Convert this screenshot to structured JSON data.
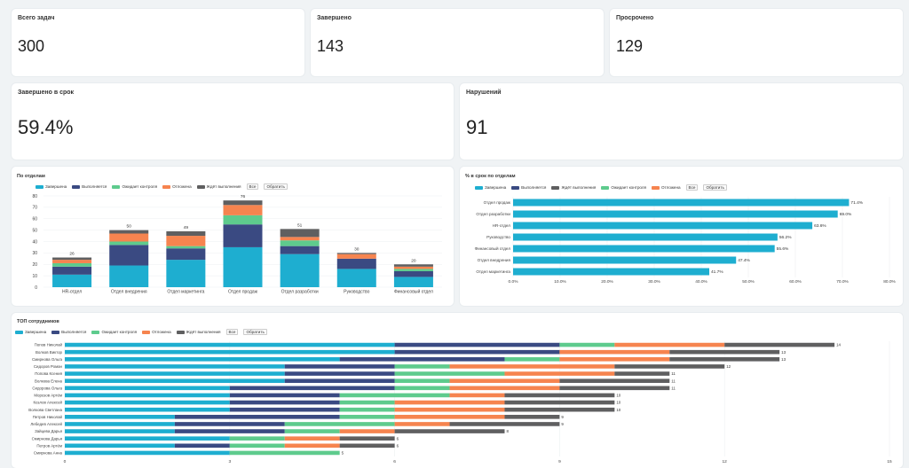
{
  "colors": {
    "done": "#1eaed0",
    "inprogress": "#3a4a82",
    "control": "#5ecb8d",
    "postponed": "#f6844f",
    "waiting": "#5f5f60"
  },
  "kpis": [
    {
      "label": "Всего задач",
      "value": "300"
    },
    {
      "label": "Завершено",
      "value": "143"
    },
    {
      "label": "Просрочено",
      "value": "129"
    }
  ],
  "kpis2": [
    {
      "label": "Завершено в срок",
      "value": "59.4%"
    },
    {
      "label": "Нарушений",
      "value": "91"
    }
  ],
  "legend_buttons": {
    "all": "Все",
    "invert": "Обратить"
  },
  "chart_data": [
    {
      "type": "bar",
      "stacked": true,
      "title": "По отделам",
      "legend": [
        "Завершена",
        "Выполняется",
        "Ожидает контроля",
        "Отложена",
        "Ждёт выполнения"
      ],
      "categories": [
        "HR-отдел",
        "Отдел внедрения",
        "Отдел маркетинга",
        "Отдел продаж",
        "Отдел разработки",
        "Руководство",
        "Финансовый отдел"
      ],
      "totals": [
        26,
        50,
        49,
        76,
        51,
        30,
        20
      ],
      "series": [
        {
          "name": "Завершена",
          "values": [
            11,
            19,
            24,
            35,
            29,
            16,
            9
          ]
        },
        {
          "name": "Выполняется",
          "values": [
            7,
            18,
            10,
            20,
            7,
            9,
            5
          ]
        },
        {
          "name": "Ожидает контроля",
          "values": [
            3,
            3,
            2,
            8,
            5,
            0,
            2
          ]
        },
        {
          "name": "Отложена",
          "values": [
            3,
            7,
            9,
            9,
            3,
            4,
            2
          ]
        },
        {
          "name": "Ждёт выполнения",
          "values": [
            2,
            3,
            4,
            4,
            7,
            1,
            2
          ]
        }
      ],
      "yticks": [
        "0",
        "10",
        "20",
        "30",
        "40",
        "50",
        "60",
        "70",
        "80"
      ],
      "ylim": [
        0,
        80
      ]
    },
    {
      "type": "bar",
      "orientation": "horizontal",
      "title": "% в срок по отделам",
      "legend": [
        "Завершена",
        "Выполняется",
        "Ждёт выполнения",
        "Ожидает контроля",
        "Отложена"
      ],
      "categories": [
        "Отдел продаж",
        "Отдел разработки",
        "HR-отдел",
        "Руководство",
        "Финансовый отдел",
        "Отдел внедрения",
        "Отдел маркетинга"
      ],
      "values": [
        71.4,
        69.0,
        63.6,
        56.2,
        55.6,
        47.4,
        41.7
      ],
      "labels": [
        "71.4%",
        "69.0%",
        "63.6%",
        "56.2%",
        "55.6%",
        "47.4%",
        "41.7%"
      ],
      "xticks": [
        "0.0%",
        "10.0%",
        "20.0%",
        "30.0%",
        "40.0%",
        "50.0%",
        "60.0%",
        "70.0%",
        "80.0%"
      ],
      "xlim": [
        0,
        80
      ]
    },
    {
      "type": "bar",
      "orientation": "horizontal",
      "stacked": true,
      "title": "ТОП сотрудников",
      "legend": [
        "Завершена",
        "Выполняется",
        "Ожидает контроля",
        "Отложена",
        "Ждёт выполнения"
      ],
      "categories": [
        "Попов Николай",
        "Волков Виктор",
        "Смирнова Ольга",
        "Сидоров Роман",
        "Попова Ксения",
        "Волкова Елена",
        "Сидорова Ольга",
        "Морозов Артём",
        "Козлов Алексей",
        "Волкова Светлана",
        "Петров Николай",
        "Лебедев Алексей",
        "Зайцева Дарья",
        "Смирнова Дарья",
        "Петров Артём",
        "Смирнова Анна"
      ],
      "totals": [
        14,
        13,
        13,
        12,
        11,
        11,
        11,
        10,
        10,
        10,
        9,
        9,
        8,
        6,
        6,
        5
      ],
      "total_labels": [
        "14",
        "13",
        "13",
        "12",
        "11",
        "11",
        "11",
        "10",
        "10",
        "10",
        "9",
        "9",
        "8",
        "6",
        "6",
        "5"
      ],
      "series": [
        {
          "name": "Завершена",
          "values": [
            6,
            6,
            5,
            4,
            4,
            4,
            3,
            3,
            3,
            3,
            2,
            2,
            2,
            3,
            2,
            3
          ]
        },
        {
          "name": "Выполняется",
          "values": [
            3,
            3,
            3,
            2,
            2,
            2,
            3,
            2,
            2,
            2,
            3,
            2,
            2,
            0,
            1,
            0
          ]
        },
        {
          "name": "Ожидает контроля",
          "values": [
            1,
            0,
            1,
            1,
            2,
            1,
            1,
            2,
            1,
            1,
            1,
            2,
            1,
            1,
            1,
            2
          ]
        },
        {
          "name": "Отложена",
          "values": [
            2,
            2,
            2,
            3,
            2,
            2,
            2,
            1,
            2,
            2,
            2,
            1,
            1,
            1,
            1,
            0
          ]
        },
        {
          "name": "Ждёт выполнения",
          "values": [
            2,
            2,
            2,
            2,
            1,
            2,
            2,
            2,
            2,
            2,
            1,
            2,
            2,
            1,
            1,
            0
          ]
        }
      ],
      "xticks": [
        "0",
        "3",
        "6",
        "9",
        "12",
        "15"
      ],
      "xlim": [
        0,
        15
      ]
    }
  ]
}
